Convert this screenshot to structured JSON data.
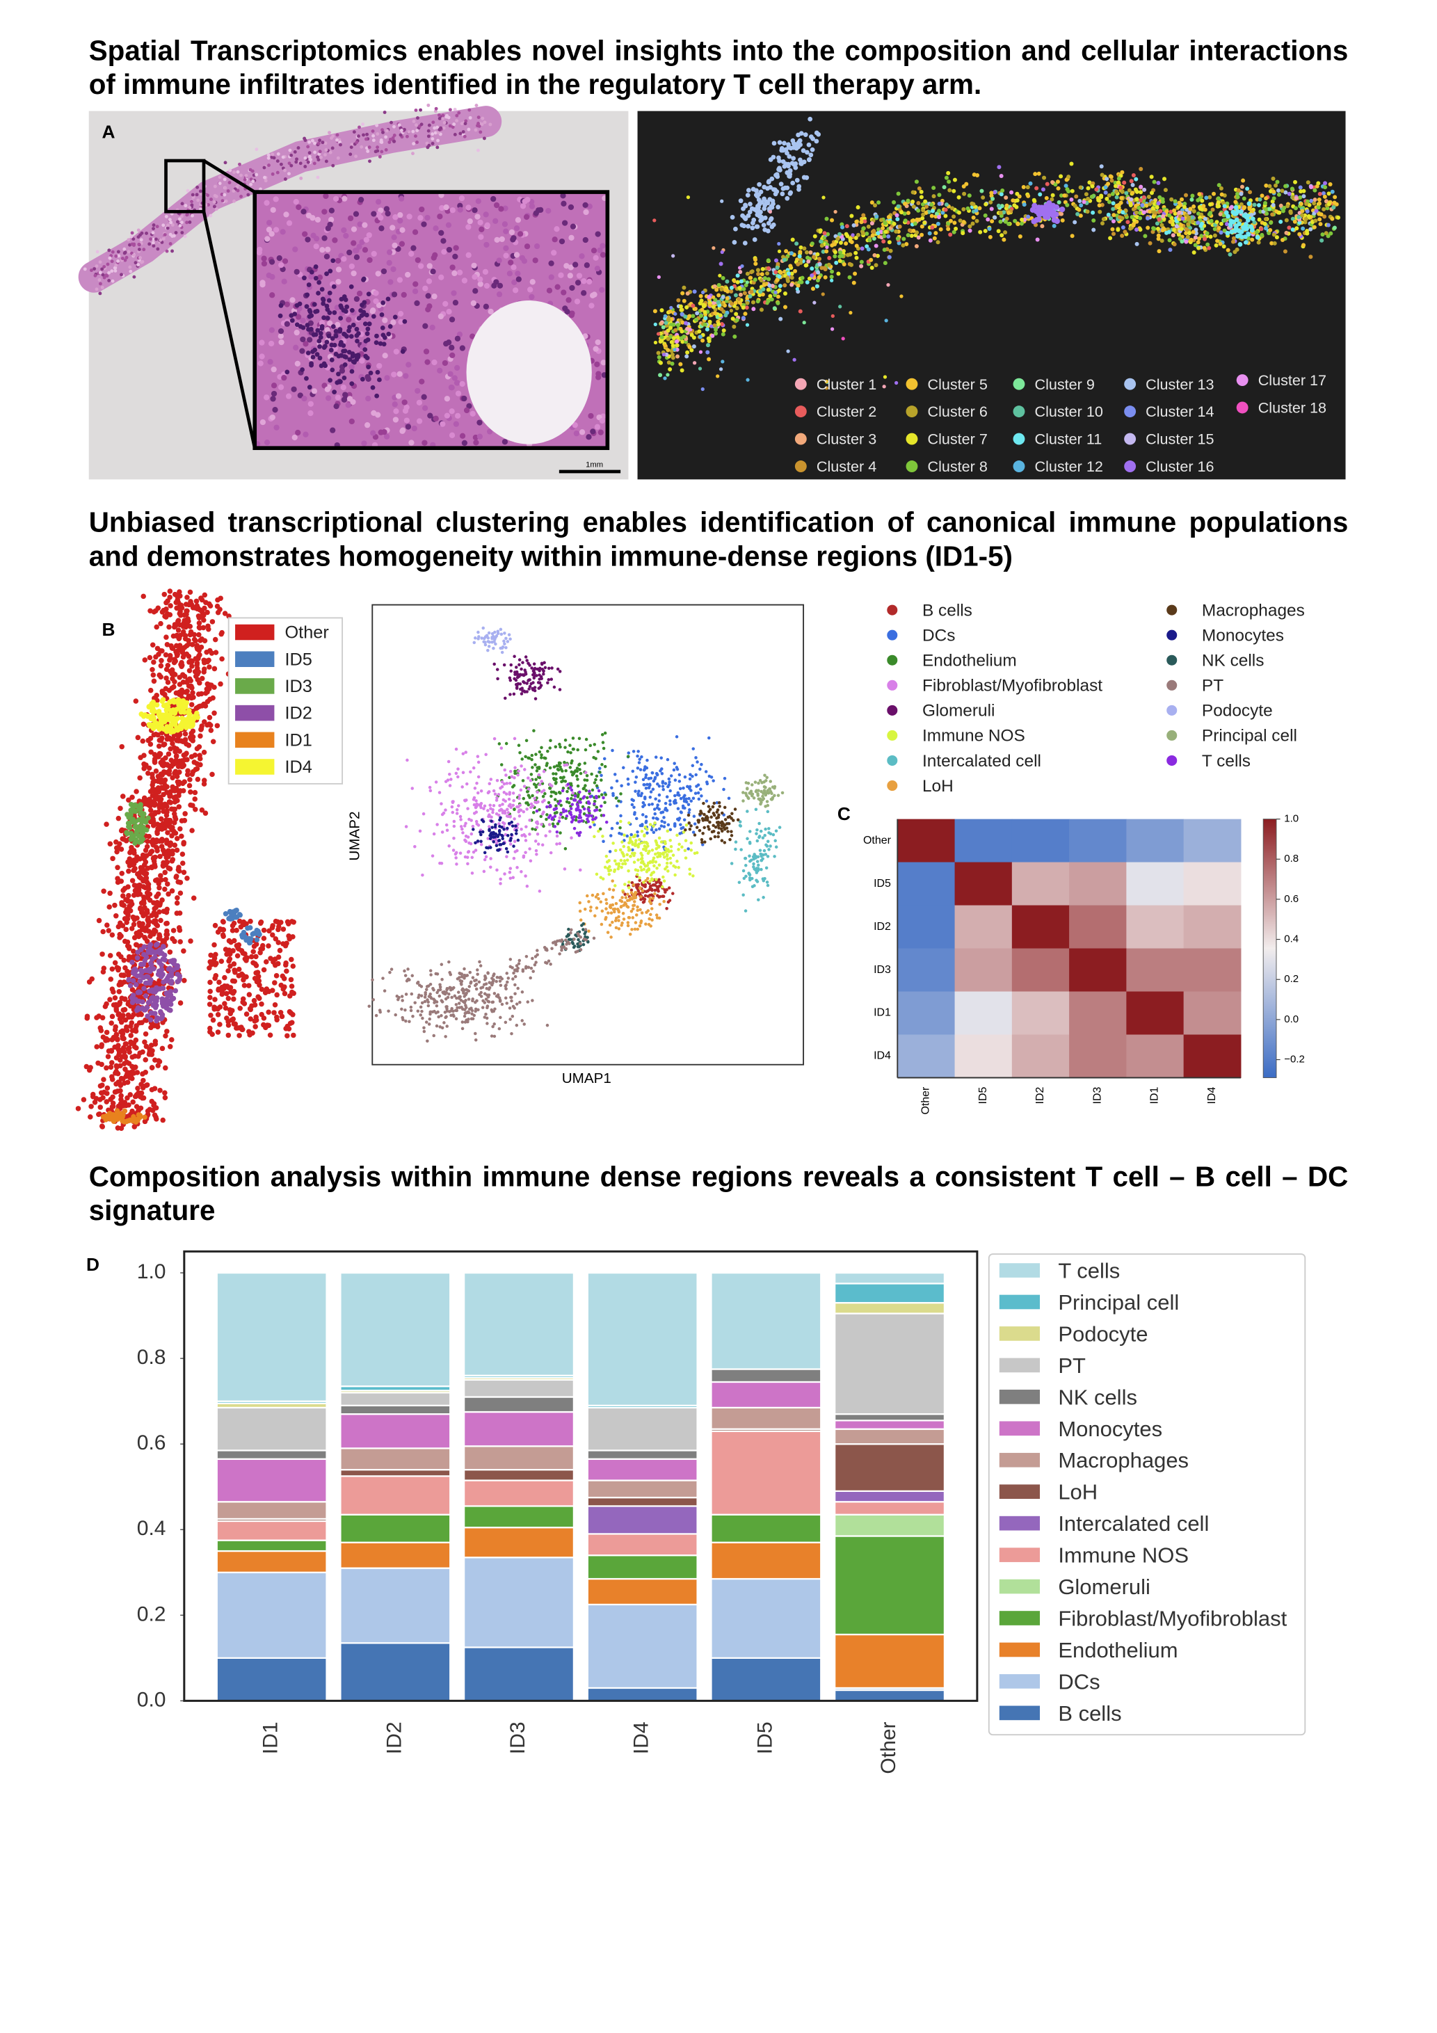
{
  "headings": [
    "Spatial Transcriptomics enables novel insights into the composition and cellular interactions of immune infiltrates identified in the regulatory T cell therapy arm.",
    "Unbiased transcriptional clustering enables identification of canonical immune populations and demonstrates homogeneity within immune-dense regions (ID1-5)",
    "Composition analysis within immune dense regions reveals a consistent T cell – B cell – DC signature"
  ],
  "panel_a": {
    "label": "A",
    "scale_bar": "1mm",
    "clusters": [
      {
        "name": "Cluster 1",
        "color": "#f4a6b5"
      },
      {
        "name": "Cluster 2",
        "color": "#e85c5c"
      },
      {
        "name": "Cluster 3",
        "color": "#f2a97b"
      },
      {
        "name": "Cluster 4",
        "color": "#c9932e"
      },
      {
        "name": "Cluster 5",
        "color": "#f2c230"
      },
      {
        "name": "Cluster 6",
        "color": "#b8a32a"
      },
      {
        "name": "Cluster 7",
        "color": "#e6e62a"
      },
      {
        "name": "Cluster 8",
        "color": "#7fc63a"
      },
      {
        "name": "Cluster 9",
        "color": "#7de89a"
      },
      {
        "name": "Cluster 10",
        "color": "#5fc2a0"
      },
      {
        "name": "Cluster 11",
        "color": "#6ee8f0"
      },
      {
        "name": "Cluster 12",
        "color": "#5ab4e0"
      },
      {
        "name": "Cluster 13",
        "color": "#a9c4f0"
      },
      {
        "name": "Cluster 14",
        "color": "#7b8ef0"
      },
      {
        "name": "Cluster 15",
        "color": "#c4b8f0"
      },
      {
        "name": "Cluster 16",
        "color": "#a070f0"
      },
      {
        "name": "Cluster 17",
        "color": "#e890f0"
      },
      {
        "name": "Cluster 18",
        "color": "#f050c0"
      }
    ]
  },
  "panel_b": {
    "label": "B",
    "regions": [
      {
        "name": "Other",
        "color": "#d0201f"
      },
      {
        "name": "ID5",
        "color": "#4c7fbf"
      },
      {
        "name": "ID3",
        "color": "#6aaa4a"
      },
      {
        "name": "ID2",
        "color": "#8e4fa8"
      },
      {
        "name": "ID1",
        "color": "#e8821e"
      },
      {
        "name": "ID4",
        "color": "#f5f531"
      }
    ],
    "umap": {
      "xlabel": "UMAP1",
      "ylabel": "UMAP2",
      "cell_types": [
        {
          "name": "B cells",
          "color": "#b22a2a"
        },
        {
          "name": "DCs",
          "color": "#3a6ee0"
        },
        {
          "name": "Endothelium",
          "color": "#3a8a2a"
        },
        {
          "name": "Fibroblast/Myofibroblast",
          "color": "#d880e8"
        },
        {
          "name": "Glomeruli",
          "color": "#6a0f6a"
        },
        {
          "name": "Immune NOS",
          "color": "#d8f540"
        },
        {
          "name": "Intercalated cell",
          "color": "#5bbcc4"
        },
        {
          "name": "LoH",
          "color": "#e8a040"
        },
        {
          "name": "Macrophages",
          "color": "#5a3a1a"
        },
        {
          "name": "Monocytes",
          "color": "#1a1a8a"
        },
        {
          "name": "NK cells",
          "color": "#2a5a5a"
        },
        {
          "name": "PT",
          "color": "#9a7a7a"
        },
        {
          "name": "Podocyte",
          "color": "#a8b0f0"
        },
        {
          "name": "Principal cell",
          "color": "#98b07a"
        },
        {
          "name": "T cells",
          "color": "#8a2ae0"
        }
      ]
    }
  },
  "chart_data": [
    {
      "type": "heatmap",
      "label": "C",
      "rows": [
        "Other",
        "ID5",
        "ID2",
        "ID3",
        "ID1",
        "ID4"
      ],
      "columns": [
        "Other",
        "ID5",
        "ID2",
        "ID3",
        "ID1",
        "ID4"
      ],
      "values": [
        [
          1,
          -0.2,
          -0.2,
          -0.15,
          -0.05,
          0.05
        ],
        [
          -0.2,
          1,
          0.55,
          0.6,
          0.3,
          0.4
        ],
        [
          -0.2,
          0.55,
          1,
          0.75,
          0.5,
          0.55
        ],
        [
          -0.15,
          0.6,
          0.75,
          1,
          0.7,
          0.7
        ],
        [
          -0.05,
          0.3,
          0.5,
          0.7,
          1,
          0.65
        ],
        [
          0.05,
          0.4,
          0.55,
          0.7,
          0.65,
          1
        ]
      ],
      "clim": [
        -0.29,
        1
      ],
      "cticks": [
        {
          "value": 1,
          "label": "1.0"
        },
        0.8,
        0.6,
        0.4,
        0.2,
        {
          "value": 0,
          "label": "0.0"
        },
        {
          "value": -0.2,
          "label": "−0.2"
        }
      ]
    },
    {
      "type": "bar",
      "stacked": true,
      "label": "D",
      "categories": [
        "ID1",
        "ID2",
        "ID3",
        "ID4",
        "ID5",
        "Other"
      ],
      "series": [
        {
          "name": "B cells",
          "color": "#4575b4",
          "values": [
            0.1,
            0.135,
            0.125,
            0.03,
            0.1,
            0.025
          ]
        },
        {
          "name": "DCs",
          "color": "#aec7e8",
          "values": [
            0.2,
            0.175,
            0.21,
            0.195,
            0.185,
            0.005
          ]
        },
        {
          "name": "Endothelium",
          "color": "#e8812a",
          "values": [
            0.05,
            0.06,
            0.07,
            0.06,
            0.085,
            0.125
          ]
        },
        {
          "name": "Fibroblast/Myofibroblast",
          "color": "#5aa63a",
          "values": [
            0.025,
            0.065,
            0.05,
            0.055,
            0.065,
            0.23
          ]
        },
        {
          "name": "Glomeruli",
          "color": "#b1e09a",
          "values": [
            0,
            0,
            0,
            0,
            0,
            0.05
          ]
        },
        {
          "name": "Immune NOS",
          "color": "#ec9b98",
          "values": [
            0.045,
            0.09,
            0.06,
            0.05,
            0.195,
            0.03
          ]
        },
        {
          "name": "Intercalated cell",
          "color": "#9467bd",
          "values": [
            0,
            0,
            0,
            0.065,
            0,
            0.025
          ]
        },
        {
          "name": "LoH",
          "color": "#8c564b",
          "values": [
            0.005,
            0.015,
            0.025,
            0.02,
            0.005,
            0.11
          ]
        },
        {
          "name": "Macrophages",
          "color": "#c49c94",
          "values": [
            0.04,
            0.05,
            0.055,
            0.04,
            0.05,
            0.035
          ]
        },
        {
          "name": "Monocytes",
          "color": "#cd74c7",
          "values": [
            0.1,
            0.08,
            0.08,
            0.05,
            0.06,
            0.02
          ]
        },
        {
          "name": "NK cells",
          "color": "#7f7f7f",
          "values": [
            0.02,
            0.02,
            0.035,
            0.02,
            0.03,
            0.015
          ]
        },
        {
          "name": "PT",
          "color": "#c7c7c7",
          "values": [
            0.1,
            0.03,
            0.04,
            0.1,
            0,
            0.235
          ]
        },
        {
          "name": "Podocyte",
          "color": "#dbdb8d",
          "values": [
            0.01,
            0.005,
            0.005,
            0,
            0,
            0.025
          ]
        },
        {
          "name": "Principal cell",
          "color": "#5bbccc",
          "values": [
            0.005,
            0.01,
            0.005,
            0.005,
            0,
            0.045
          ]
        },
        {
          "name": "T cells",
          "color": "#b2dbe4",
          "values": [
            0.3,
            0.265,
            0.24,
            0.31,
            0.225,
            0.025
          ]
        }
      ],
      "ylim": [
        0,
        1.05
      ],
      "yticks": [
        {
          "value": 0,
          "label": "0.0"
        },
        0.2,
        0.4,
        0.6,
        0.8,
        {
          "value": 1,
          "label": "1.0"
        }
      ],
      "legend": "outside right"
    }
  ]
}
